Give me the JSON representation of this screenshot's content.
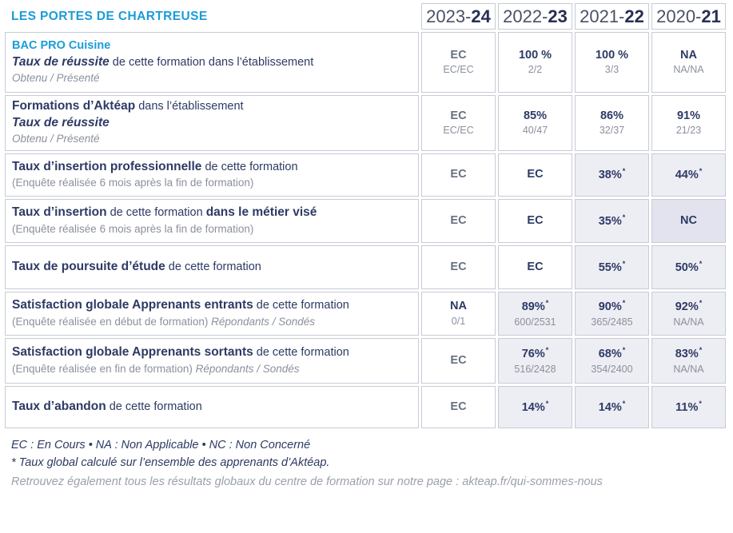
{
  "title": "LES PORTES DE CHARTREUSE",
  "colors": {
    "accent_cyan": "#1b9cd9",
    "navy": "#2d3a64",
    "gray_text": "#8b909c",
    "border": "#c7cbd5",
    "cell_shade": "#ededf4",
    "cell_shade_dark": "#e2e3ee"
  },
  "columns": [
    {
      "prefix": "2023-",
      "suffix": "24"
    },
    {
      "prefix": "2022-",
      "suffix": "23"
    },
    {
      "prefix": "2021-",
      "suffix": "22"
    },
    {
      "prefix": "2020-",
      "suffix": "21"
    }
  ],
  "rows": [
    {
      "label_lines": [
        {
          "parts": [
            {
              "t": "BAC PRO Cuisine",
              "s": "cb"
            }
          ]
        },
        {
          "parts": [
            {
              "t": "Taux de réussite",
              "s": "bi"
            },
            {
              "t": " de cette formation dans l’établissement",
              "s": "r"
            }
          ]
        },
        {
          "parts": [
            {
              "t": "Obtenu / Présenté",
              "s": "gi"
            }
          ]
        }
      ],
      "cells": [
        {
          "main": "EC",
          "sub": "EC/EC",
          "muted": true
        },
        {
          "main": "100 %",
          "sub": "2/2"
        },
        {
          "main": "100 %",
          "sub": "3/3"
        },
        {
          "main": "NA",
          "sub": "NA/NA"
        }
      ]
    },
    {
      "label_lines": [
        {
          "parts": [
            {
              "t": "Formations d’Aktéap",
              "s": "b"
            },
            {
              "t": " dans l’établissement",
              "s": "r"
            }
          ]
        },
        {
          "parts": [
            {
              "t": "Taux de réussite",
              "s": "bi"
            }
          ]
        },
        {
          "parts": [
            {
              "t": "Obtenu / Présenté",
              "s": "gi"
            }
          ]
        }
      ],
      "cells": [
        {
          "main": "EC",
          "sub": "EC/EC",
          "muted": true
        },
        {
          "main": "85%",
          "sub": "40/47"
        },
        {
          "main": "86%",
          "sub": "32/37"
        },
        {
          "main": "91%",
          "sub": "21/23"
        }
      ]
    },
    {
      "label_lines": [
        {
          "parts": [
            {
              "t": "Taux d’insertion professionnelle",
              "s": "b"
            },
            {
              "t": " de cette formation",
              "s": "r"
            }
          ]
        },
        {
          "parts": [
            {
              "t": "(Enquête réalisée 6 mois après la fin de formation)",
              "s": "g"
            }
          ]
        }
      ],
      "cells": [
        {
          "main": "EC",
          "muted": true
        },
        {
          "main": "EC"
        },
        {
          "main": "38%",
          "star": true,
          "bg": "shade"
        },
        {
          "main": "44%",
          "star": true,
          "bg": "shade"
        }
      ]
    },
    {
      "label_lines": [
        {
          "parts": [
            {
              "t": "Taux d’insertion",
              "s": "b"
            },
            {
              "t": " de cette formation ",
              "s": "r"
            },
            {
              "t": "dans le métier visé",
              "s": "b"
            }
          ]
        },
        {
          "parts": [
            {
              "t": "(Enquête réalisée 6 mois après la fin de formation)",
              "s": "g"
            }
          ]
        }
      ],
      "cells": [
        {
          "main": "EC",
          "muted": true
        },
        {
          "main": "EC"
        },
        {
          "main": "35%",
          "star": true,
          "bg": "shade"
        },
        {
          "main": "NC",
          "bg": "dark"
        }
      ]
    },
    {
      "label_lines": [
        {
          "parts": [
            {
              "t": "Taux de poursuite d’étude",
              "s": "b"
            },
            {
              "t": " de cette formation",
              "s": "r"
            }
          ]
        }
      ],
      "cells": [
        {
          "main": "EC",
          "muted": true
        },
        {
          "main": "EC"
        },
        {
          "main": "55%",
          "star": true,
          "bg": "shade"
        },
        {
          "main": "50%",
          "star": true,
          "bg": "shade"
        }
      ]
    },
    {
      "label_lines": [
        {
          "parts": [
            {
              "t": "Satisfaction globale Apprenants entrants",
              "s": "b"
            },
            {
              "t": " de cette formation",
              "s": "r"
            }
          ]
        },
        {
          "parts": [
            {
              "t": "(Enquête réalisée en début de formation) ",
              "s": "g"
            },
            {
              "t": "Répondants / Sondés",
              "s": "gi"
            }
          ]
        }
      ],
      "cells": [
        {
          "main": "NA",
          "sub": "0/1"
        },
        {
          "main": "89%",
          "star": true,
          "sub": "600/2531",
          "bg": "shade"
        },
        {
          "main": "90%",
          "star": true,
          "sub": "365/2485",
          "bg": "shade"
        },
        {
          "main": "92%",
          "star": true,
          "sub": "NA/NA",
          "bg": "shade"
        }
      ]
    },
    {
      "label_lines": [
        {
          "parts": [
            {
              "t": "Satisfaction globale Apprenants sortants",
              "s": "b"
            },
            {
              "t": " de cette formation",
              "s": "r"
            }
          ]
        },
        {
          "parts": [
            {
              "t": "(Enquête réalisée en fin de formation) ",
              "s": "g"
            },
            {
              "t": "Répondants / Sondés",
              "s": "gi"
            }
          ]
        }
      ],
      "cells": [
        {
          "main": "EC",
          "muted": true
        },
        {
          "main": "76%",
          "star": true,
          "sub": "516/2428",
          "bg": "shade"
        },
        {
          "main": "68%",
          "star": true,
          "sub": "354/2400",
          "bg": "shade"
        },
        {
          "main": "83%",
          "star": true,
          "sub": "NA/NA",
          "bg": "shade"
        }
      ]
    },
    {
      "label_lines": [
        {
          "parts": [
            {
              "t": "Taux d’abandon",
              "s": "b"
            },
            {
              "t": " de cette formation",
              "s": "r"
            }
          ]
        }
      ],
      "cells": [
        {
          "main": "EC",
          "muted": true
        },
        {
          "main": "14%",
          "star": true,
          "bg": "shade"
        },
        {
          "main": "14%",
          "star": true,
          "bg": "shade"
        },
        {
          "main": "11%",
          "star": true,
          "bg": "shade"
        }
      ]
    }
  ],
  "legend": {
    "abbreviations": "EC : En Cours  •  NA : Non Applicable  •  NC : Non Concerné",
    "note": "* Taux global calculé sur l’ensemble des apprenants d’Aktéap."
  },
  "footer": "Retrouvez également tous les résultats globaux du centre de formation sur notre page : akteap.fr/qui-sommes-nous"
}
